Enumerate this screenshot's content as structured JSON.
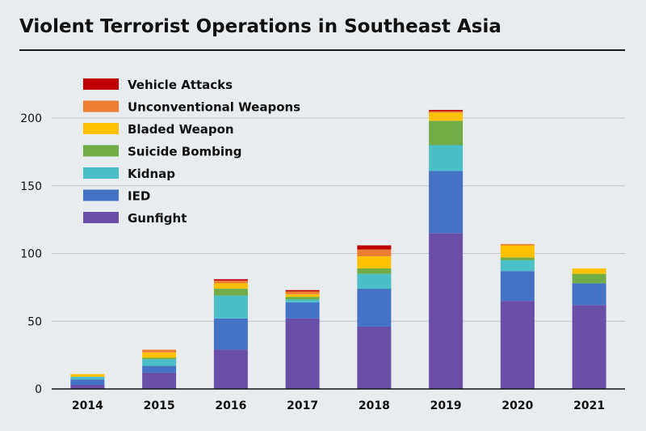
{
  "title": "Violent Terrorist Operations in Southeast Asia",
  "chart_data": {
    "type": "bar",
    "stacked": true,
    "title": "Violent Terrorist Operations in Southeast Asia",
    "xlabel": "",
    "ylabel": "",
    "ylim": [
      0,
      220
    ],
    "yticks": [
      0,
      50,
      100,
      150,
      200
    ],
    "grid": true,
    "legend_position": "top-left",
    "categories": [
      "2014",
      "2015",
      "2016",
      "2017",
      "2018",
      "2019",
      "2020",
      "2021"
    ],
    "series": [
      {
        "name": "Gunfight",
        "color": "#6a4fa8",
        "values": [
          3,
          12,
          29,
          52,
          46,
          115,
          65,
          62
        ]
      },
      {
        "name": "IED",
        "color": "#4472c4",
        "values": [
          4,
          5,
          23,
          12,
          28,
          46,
          22,
          16
        ]
      },
      {
        "name": "Kidnap",
        "color": "#4bbfc7",
        "values": [
          2,
          5,
          17,
          2,
          11,
          19,
          8,
          0
        ]
      },
      {
        "name": "Suicide Bombing",
        "color": "#70ad47",
        "values": [
          0,
          1,
          5,
          2,
          4,
          18,
          2,
          7
        ]
      },
      {
        "name": "Bladed Weapon",
        "color": "#ffc000",
        "values": [
          2,
          4,
          4,
          2,
          9,
          6,
          9,
          4
        ]
      },
      {
        "name": "Unconventional Weapons",
        "color": "#ed7d31",
        "values": [
          0,
          2,
          2,
          2,
          5,
          1,
          1,
          0
        ]
      },
      {
        "name": "Vehicle Attacks",
        "color": "#c00000",
        "values": [
          0,
          0,
          1,
          1,
          3,
          1,
          0,
          0
        ]
      }
    ],
    "legend_order": [
      "Vehicle Attacks",
      "Unconventional Weapons",
      "Bladed Weapon",
      "Suicide Bombing",
      "Kidnap",
      "IED",
      "Gunfight"
    ]
  }
}
